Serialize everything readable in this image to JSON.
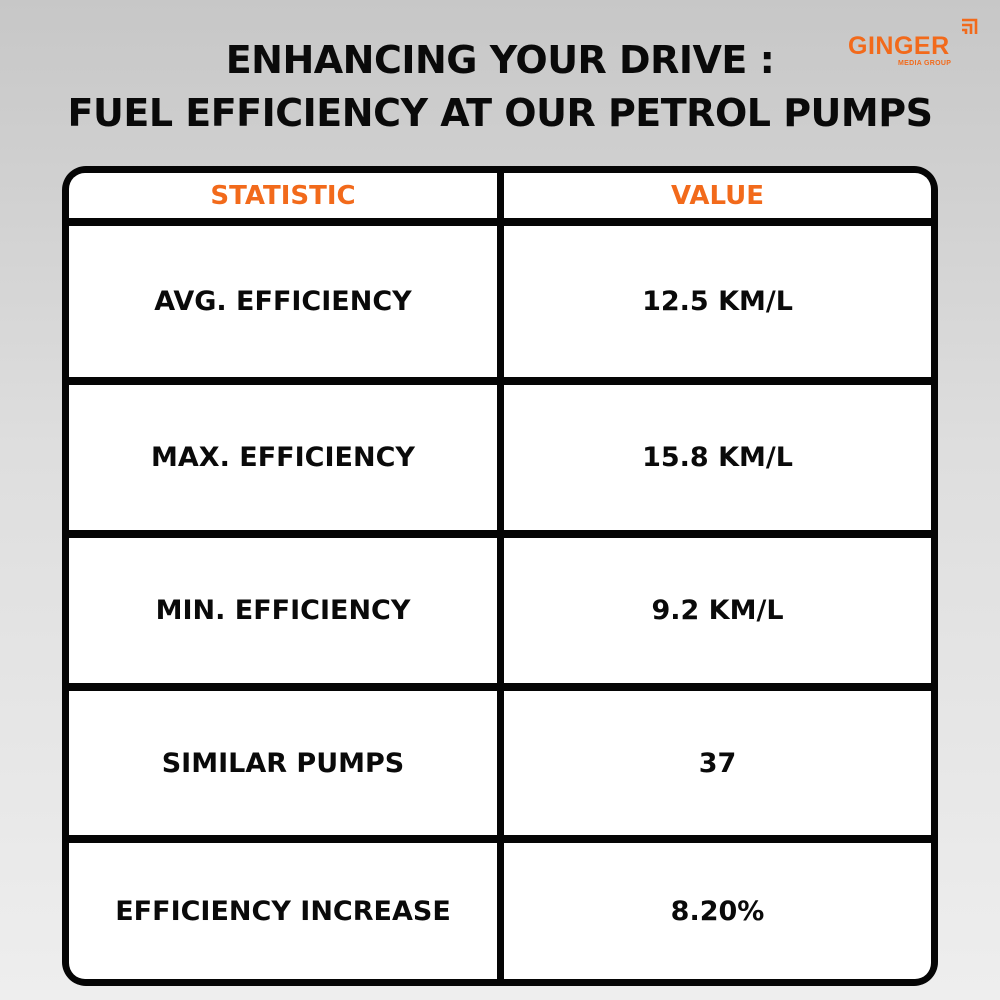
{
  "title": {
    "line1": "ENHANCING YOUR DRIVE :",
    "line2": "FUEL EFFICIENCY AT OUR PETROL PUMPS"
  },
  "logo": {
    "name": "GINGER",
    "tagline": "MEDIA GROUP",
    "color": "#f26a1b",
    "icon": "bars-corner-icon"
  },
  "table": {
    "headers": [
      "STATISTIC",
      "VALUE"
    ],
    "rows": [
      [
        "AVG. EFFICIENCY",
        "12.5 KM/L"
      ],
      [
        "MAX. EFFICIENCY",
        "15.8 KM/L"
      ],
      [
        "MIN. EFFICIENCY",
        "9.2 KM/L"
      ],
      [
        "SIMILAR PUMPS",
        "37"
      ],
      [
        "EFFICIENCY INCREASE",
        "8.20%"
      ]
    ],
    "header_color": "#f26a1b",
    "border_color": "#050505"
  }
}
